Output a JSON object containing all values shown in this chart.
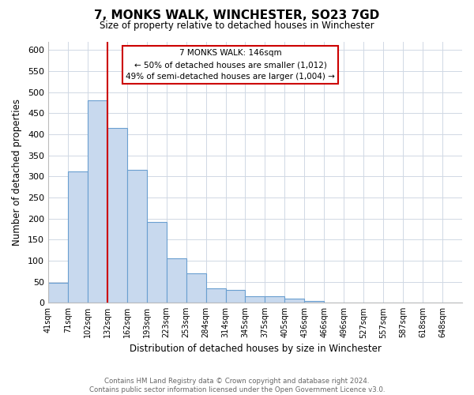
{
  "title": "7, MONKS WALK, WINCHESTER, SO23 7GD",
  "subtitle": "Size of property relative to detached houses in Winchester",
  "xlabel": "Distribution of detached houses by size in Winchester",
  "ylabel": "Number of detached properties",
  "bar_color": "#c8d9ee",
  "bar_edge_color": "#6a9fd0",
  "bar_heights": [
    47,
    311,
    480,
    415,
    315,
    192,
    105,
    69,
    35,
    30,
    15,
    15,
    9,
    4,
    1,
    0,
    1,
    0,
    0,
    0,
    0
  ],
  "bin_labels": [
    "41sqm",
    "71sqm",
    "102sqm",
    "132sqm",
    "162sqm",
    "193sqm",
    "223sqm",
    "253sqm",
    "284sqm",
    "314sqm",
    "345sqm",
    "375sqm",
    "405sqm",
    "436sqm",
    "466sqm",
    "496sqm",
    "527sqm",
    "557sqm",
    "587sqm",
    "618sqm",
    "648sqm"
  ],
  "ylim": [
    0,
    620
  ],
  "yticks": [
    0,
    50,
    100,
    150,
    200,
    250,
    300,
    350,
    400,
    450,
    500,
    550,
    600
  ],
  "property_line_x": 3,
  "property_line_color": "#cc0000",
  "annotation_title": "7 MONKS WALK: 146sqm",
  "annotation_line1": "← 50% of detached houses are smaller (1,012)",
  "annotation_line2": "49% of semi-detached houses are larger (1,004) →",
  "footer_line1": "Contains HM Land Registry data © Crown copyright and database right 2024.",
  "footer_line2": "Contains public sector information licensed under the Open Government Licence v3.0.",
  "background_color": "#ffffff",
  "grid_color": "#d0d8e4"
}
